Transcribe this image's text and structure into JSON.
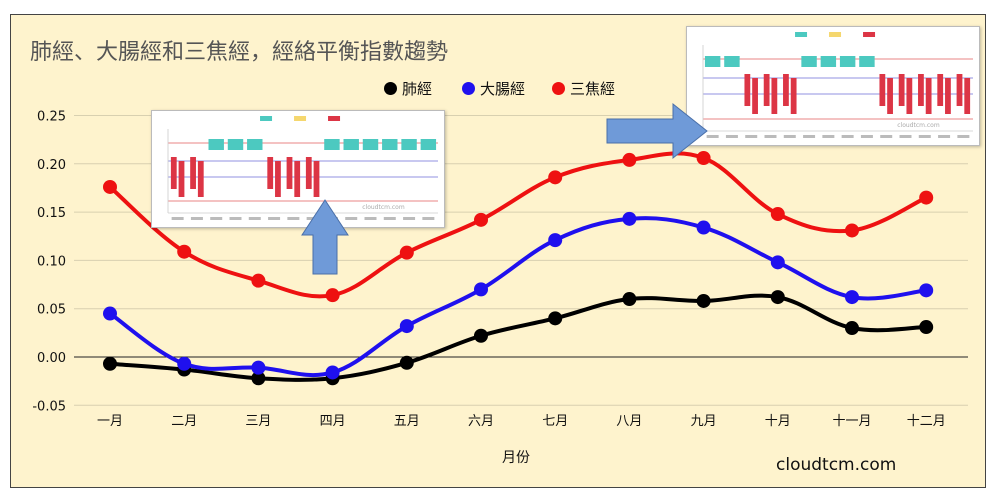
{
  "title": "肺經、大腸經和三焦經，經絡平衡指數趨勢",
  "watermark": "cloudtcm.com",
  "inset_watermark": "cloudtcm.com",
  "colors": {
    "background": "#fef3cd",
    "lung": "#000000",
    "large_intestine": "#1f10ee",
    "san_jiao": "#ee1111",
    "arrow": "#6f9ad8",
    "inset_bar_red": "#dc3545",
    "inset_bar_teal": "#4cc9c0"
  },
  "chart_data": {
    "type": "line",
    "title": "肺經、大腸經和三焦經，經絡平衡指數趨勢",
    "xlabel": "月份",
    "ylabel": "",
    "categories": [
      "一月",
      "二月",
      "三月",
      "四月",
      "五月",
      "六月",
      "七月",
      "八月",
      "九月",
      "十月",
      "十一月",
      "十二月"
    ],
    "ylim": [
      -0.05,
      0.25
    ],
    "yticks": [
      "-0.05",
      "0.00",
      "0.05",
      "0.10",
      "0.15",
      "0.20",
      "0.25"
    ],
    "grid": true,
    "legend_position": "top-right",
    "series": [
      {
        "name": "肺經",
        "color": "#000000",
        "values": [
          -0.007,
          -0.013,
          -0.022,
          -0.022,
          -0.006,
          0.022,
          0.04,
          0.06,
          0.058,
          0.062,
          0.03,
          0.031
        ]
      },
      {
        "name": "大腸經",
        "color": "#1f10ee",
        "values": [
          0.045,
          -0.007,
          -0.011,
          -0.016,
          0.032,
          0.07,
          0.121,
          0.143,
          0.134,
          0.098,
          0.062,
          0.069
        ]
      },
      {
        "name": "三焦經",
        "color": "#ee1111",
        "values": [
          0.176,
          0.109,
          0.079,
          0.064,
          0.108,
          0.142,
          0.186,
          0.204,
          0.206,
          0.148,
          0.131,
          0.165
        ]
      }
    ]
  },
  "insets": [
    {
      "name": "left-inset",
      "bars": [
        -1,
        -1,
        1,
        1,
        1,
        -1,
        -1,
        -1,
        1,
        1,
        1,
        1,
        1,
        1
      ]
    },
    {
      "name": "right-inset",
      "bars": [
        1,
        1,
        -1,
        -1,
        -1,
        1,
        1,
        1,
        1,
        -1,
        -1,
        -1,
        -1,
        -1
      ]
    }
  ]
}
